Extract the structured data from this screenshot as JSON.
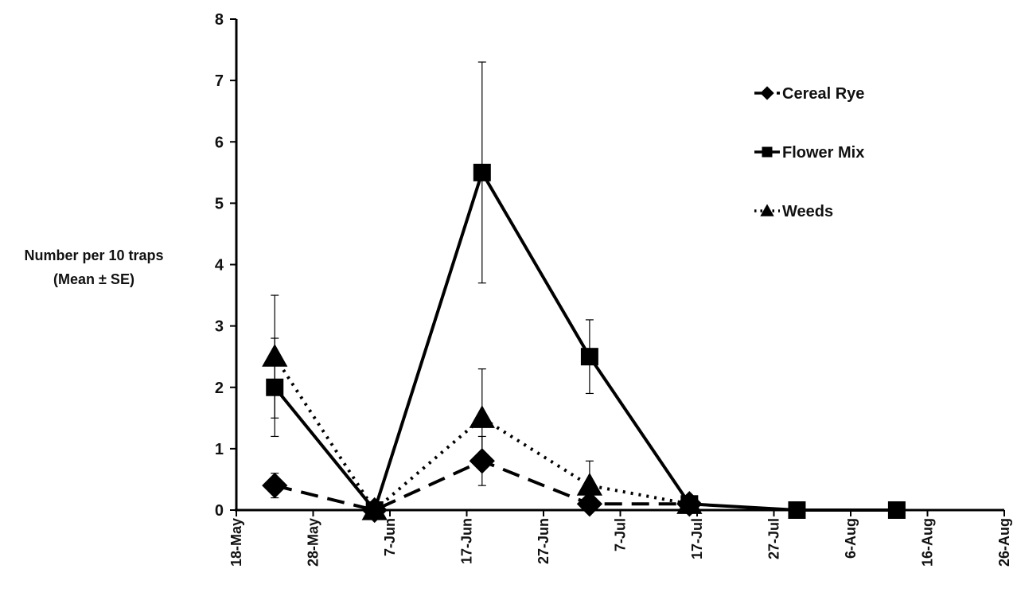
{
  "chart_data": {
    "type": "line",
    "title": "",
    "xlabel": "",
    "ylabel": [
      "Number per 10 traps",
      "(Mean ± SE)"
    ],
    "x_ticks": [
      "18-May",
      "28-May",
      "7-Jun",
      "17-Jun",
      "27-Jun",
      "7-Jul",
      "17-Jul",
      "27-Jul",
      "6-Aug",
      "16-Aug",
      "26-Aug"
    ],
    "x_range": [
      "18-May",
      "26-Aug"
    ],
    "y_ticks": [
      0,
      1,
      2,
      3,
      4,
      5,
      6,
      7,
      8
    ],
    "ylim": [
      0,
      8
    ],
    "grid": false,
    "legend_position": "top-right",
    "series": [
      {
        "name": "Cereal Rye",
        "line_style": "dashed",
        "marker": "diamond",
        "color": "#000000",
        "points": [
          {
            "x": "23-May",
            "y": 0.4,
            "se": 0.2
          },
          {
            "x": "5-Jun",
            "y": 0.0,
            "se": 0
          },
          {
            "x": "19-Jun",
            "y": 0.8,
            "se": 0.4
          },
          {
            "x": "3-Jul",
            "y": 0.1,
            "se": 0
          },
          {
            "x": "16-Jul",
            "y": 0.1,
            "se": 0
          }
        ]
      },
      {
        "name": "Flower Mix",
        "line_style": "solid",
        "marker": "square",
        "color": "#000000",
        "points": [
          {
            "x": "23-May",
            "y": 2.0,
            "se": 0.8
          },
          {
            "x": "5-Jun",
            "y": 0.0,
            "se": 0
          },
          {
            "x": "19-Jun",
            "y": 5.5,
            "se": 1.8
          },
          {
            "x": "3-Jul",
            "y": 2.5,
            "se": 0.6
          },
          {
            "x": "16-Jul",
            "y": 0.1,
            "se": 0
          },
          {
            "x": "30-Jul",
            "y": 0.0,
            "se": 0
          },
          {
            "x": "12-Aug",
            "y": 0.0,
            "se": 0
          }
        ]
      },
      {
        "name": "Weeds",
        "line_style": "dotted",
        "marker": "triangle",
        "color": "#000000",
        "points": [
          {
            "x": "23-May",
            "y": 2.5,
            "se": 1.0
          },
          {
            "x": "5-Jun",
            "y": 0.0,
            "se": 0
          },
          {
            "x": "19-Jun",
            "y": 1.5,
            "se": 0.8
          },
          {
            "x": "3-Jul",
            "y": 0.4,
            "se": 0.4
          },
          {
            "x": "16-Jul",
            "y": 0.1,
            "se": 0
          }
        ]
      }
    ]
  }
}
